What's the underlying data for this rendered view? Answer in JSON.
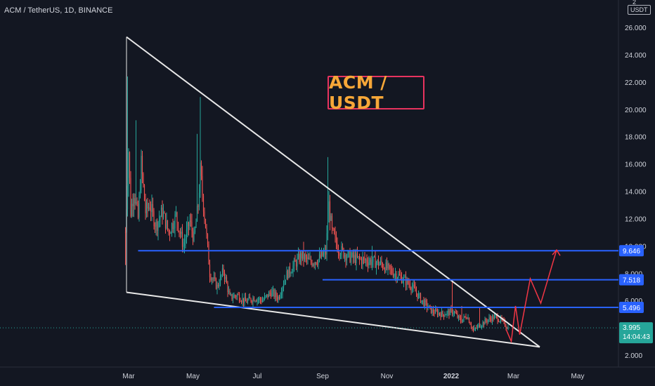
{
  "header": {
    "symbol_title": "ACM / TetherUS, 1D, BINANCE",
    "currency": "USDT",
    "scale_top": "2 "
  },
  "annotation": {
    "text": "ACM / USDT"
  },
  "colors": {
    "background": "#131722",
    "up_candle": "#26a69a",
    "down_candle": "#ef5350",
    "trendline": "#e8e8e8",
    "level_line": "#2962ff",
    "projection": "#f23645",
    "current_price_bg": "#26a69a"
  },
  "chart_data": {
    "type": "candlestick",
    "title": "ACM / TetherUS, 1D, BINANCE",
    "x_ticks": [
      "Mar",
      "May",
      "Jul",
      "Sep",
      "Nov",
      "2022",
      "Mar",
      "May"
    ],
    "y_ticks": [
      "2.000",
      "4.000",
      "6.000",
      "8.000",
      "10.000",
      "12.000",
      "14.000",
      "16.000",
      "18.000",
      "20.000",
      "22.000",
      "24.000",
      "26.000"
    ],
    "y_tick_values": [
      2,
      4,
      6,
      8,
      10,
      12,
      14,
      16,
      18,
      20,
      22,
      24,
      26
    ],
    "ylim": [
      1.9,
      27.8
    ],
    "x_range": [
      "2021-02-26",
      "2022-05-28"
    ],
    "grid": false,
    "price_path": [
      [
        "2021-02-26",
        11.0
      ],
      [
        "2021-03-01",
        17.0
      ],
      [
        "2021-03-03",
        12.5
      ],
      [
        "2021-03-06",
        14.0
      ],
      [
        "2021-03-10",
        12.0
      ],
      [
        "2021-03-13",
        16.0
      ],
      [
        "2021-03-17",
        12.5
      ],
      [
        "2021-03-21",
        13.0
      ],
      [
        "2021-03-27",
        11.5
      ],
      [
        "2021-04-02",
        12.5
      ],
      [
        "2021-04-08",
        11.0
      ],
      [
        "2021-04-15",
        12.2
      ],
      [
        "2021-04-22",
        10.0
      ],
      [
        "2021-04-28",
        11.8
      ],
      [
        "2021-05-02",
        10.5
      ],
      [
        "2021-05-06",
        13.0
      ],
      [
        "2021-05-08",
        15.5
      ],
      [
        "2021-05-10",
        13.8
      ],
      [
        "2021-05-13",
        11.5
      ],
      [
        "2021-05-17",
        8.0
      ],
      [
        "2021-05-24",
        7.0
      ],
      [
        "2021-05-30",
        8.2
      ],
      [
        "2021-06-05",
        6.2
      ],
      [
        "2021-06-12",
        6.4
      ],
      [
        "2021-06-20",
        5.9
      ],
      [
        "2021-06-28",
        6.2
      ],
      [
        "2021-07-06",
        6.0
      ],
      [
        "2021-07-14",
        6.6
      ],
      [
        "2021-07-21",
        6.2
      ],
      [
        "2021-07-28",
        7.8
      ],
      [
        "2021-08-04",
        8.5
      ],
      [
        "2021-08-12",
        9.3
      ],
      [
        "2021-08-20",
        8.8
      ],
      [
        "2021-08-28",
        9.0
      ],
      [
        "2021-09-04",
        9.5
      ],
      [
        "2021-09-07",
        13.0
      ],
      [
        "2021-09-10",
        11.0
      ],
      [
        "2021-09-16",
        9.8
      ],
      [
        "2021-09-26",
        9.2
      ],
      [
        "2021-10-06",
        9.0
      ],
      [
        "2021-10-16",
        8.9
      ],
      [
        "2021-10-26",
        8.7
      ],
      [
        "2021-11-04",
        8.2
      ],
      [
        "2021-11-14",
        7.7
      ],
      [
        "2021-11-24",
        7.1
      ],
      [
        "2021-12-04",
        6.0
      ],
      [
        "2021-12-14",
        5.2
      ],
      [
        "2021-12-24",
        5.0
      ],
      [
        "2022-01-03",
        5.2
      ],
      [
        "2022-01-10",
        4.5
      ],
      [
        "2022-01-16",
        4.9
      ],
      [
        "2022-01-22",
        3.8
      ],
      [
        "2022-01-28",
        4.2
      ],
      [
        "2022-02-05",
        4.6
      ],
      [
        "2022-02-12",
        4.8
      ],
      [
        "2022-02-18",
        4.5
      ],
      [
        "2022-02-24",
        3.995
      ]
    ],
    "wick_peaks": [
      [
        "2021-02-28",
        22.4
      ],
      [
        "2021-03-08",
        19.2
      ],
      [
        "2021-03-14",
        16.5
      ],
      [
        "2021-05-08",
        20.9
      ],
      [
        "2021-05-05",
        18.2
      ],
      [
        "2021-09-06",
        16.5
      ],
      [
        "2021-08-14",
        10.3
      ],
      [
        "2021-10-18",
        10.0
      ],
      [
        "2022-01-02",
        7.5
      ],
      [
        "2022-01-11",
        5.6
      ],
      [
        "2022-01-28",
        5.5
      ]
    ],
    "trendlines": [
      {
        "name": "upper-trendline",
        "from": [
          "2021-02-27",
          25.3
        ],
        "to": [
          "2022-03-26",
          2.6
        ]
      },
      {
        "name": "lower-trendline",
        "from": [
          "2021-02-27",
          6.6
        ],
        "to": [
          "2022-03-26",
          2.6
        ]
      }
    ],
    "horizontal_levels": [
      {
        "label": "9.646",
        "value": 9.646,
        "from": "2021-03-10",
        "to": "2022-05-28"
      },
      {
        "label": "7.518",
        "value": 7.518,
        "from": "2021-09-01",
        "to": "2022-05-28"
      },
      {
        "label": "5.496",
        "value": 5.496,
        "from": "2021-05-21",
        "to": "2022-05-28"
      }
    ],
    "projection_path": [
      [
        "2022-02-22",
        3.9
      ],
      [
        "2022-02-27",
        3.0
      ],
      [
        "2022-03-03",
        5.6
      ],
      [
        "2022-03-07",
        3.5
      ],
      [
        "2022-03-17",
        7.6
      ],
      [
        "2022-03-27",
        5.8
      ],
      [
        "2022-04-11",
        9.7
      ]
    ],
    "current_price": {
      "value": 3.995,
      "label": "3.995",
      "countdown": "14:04:43"
    }
  }
}
